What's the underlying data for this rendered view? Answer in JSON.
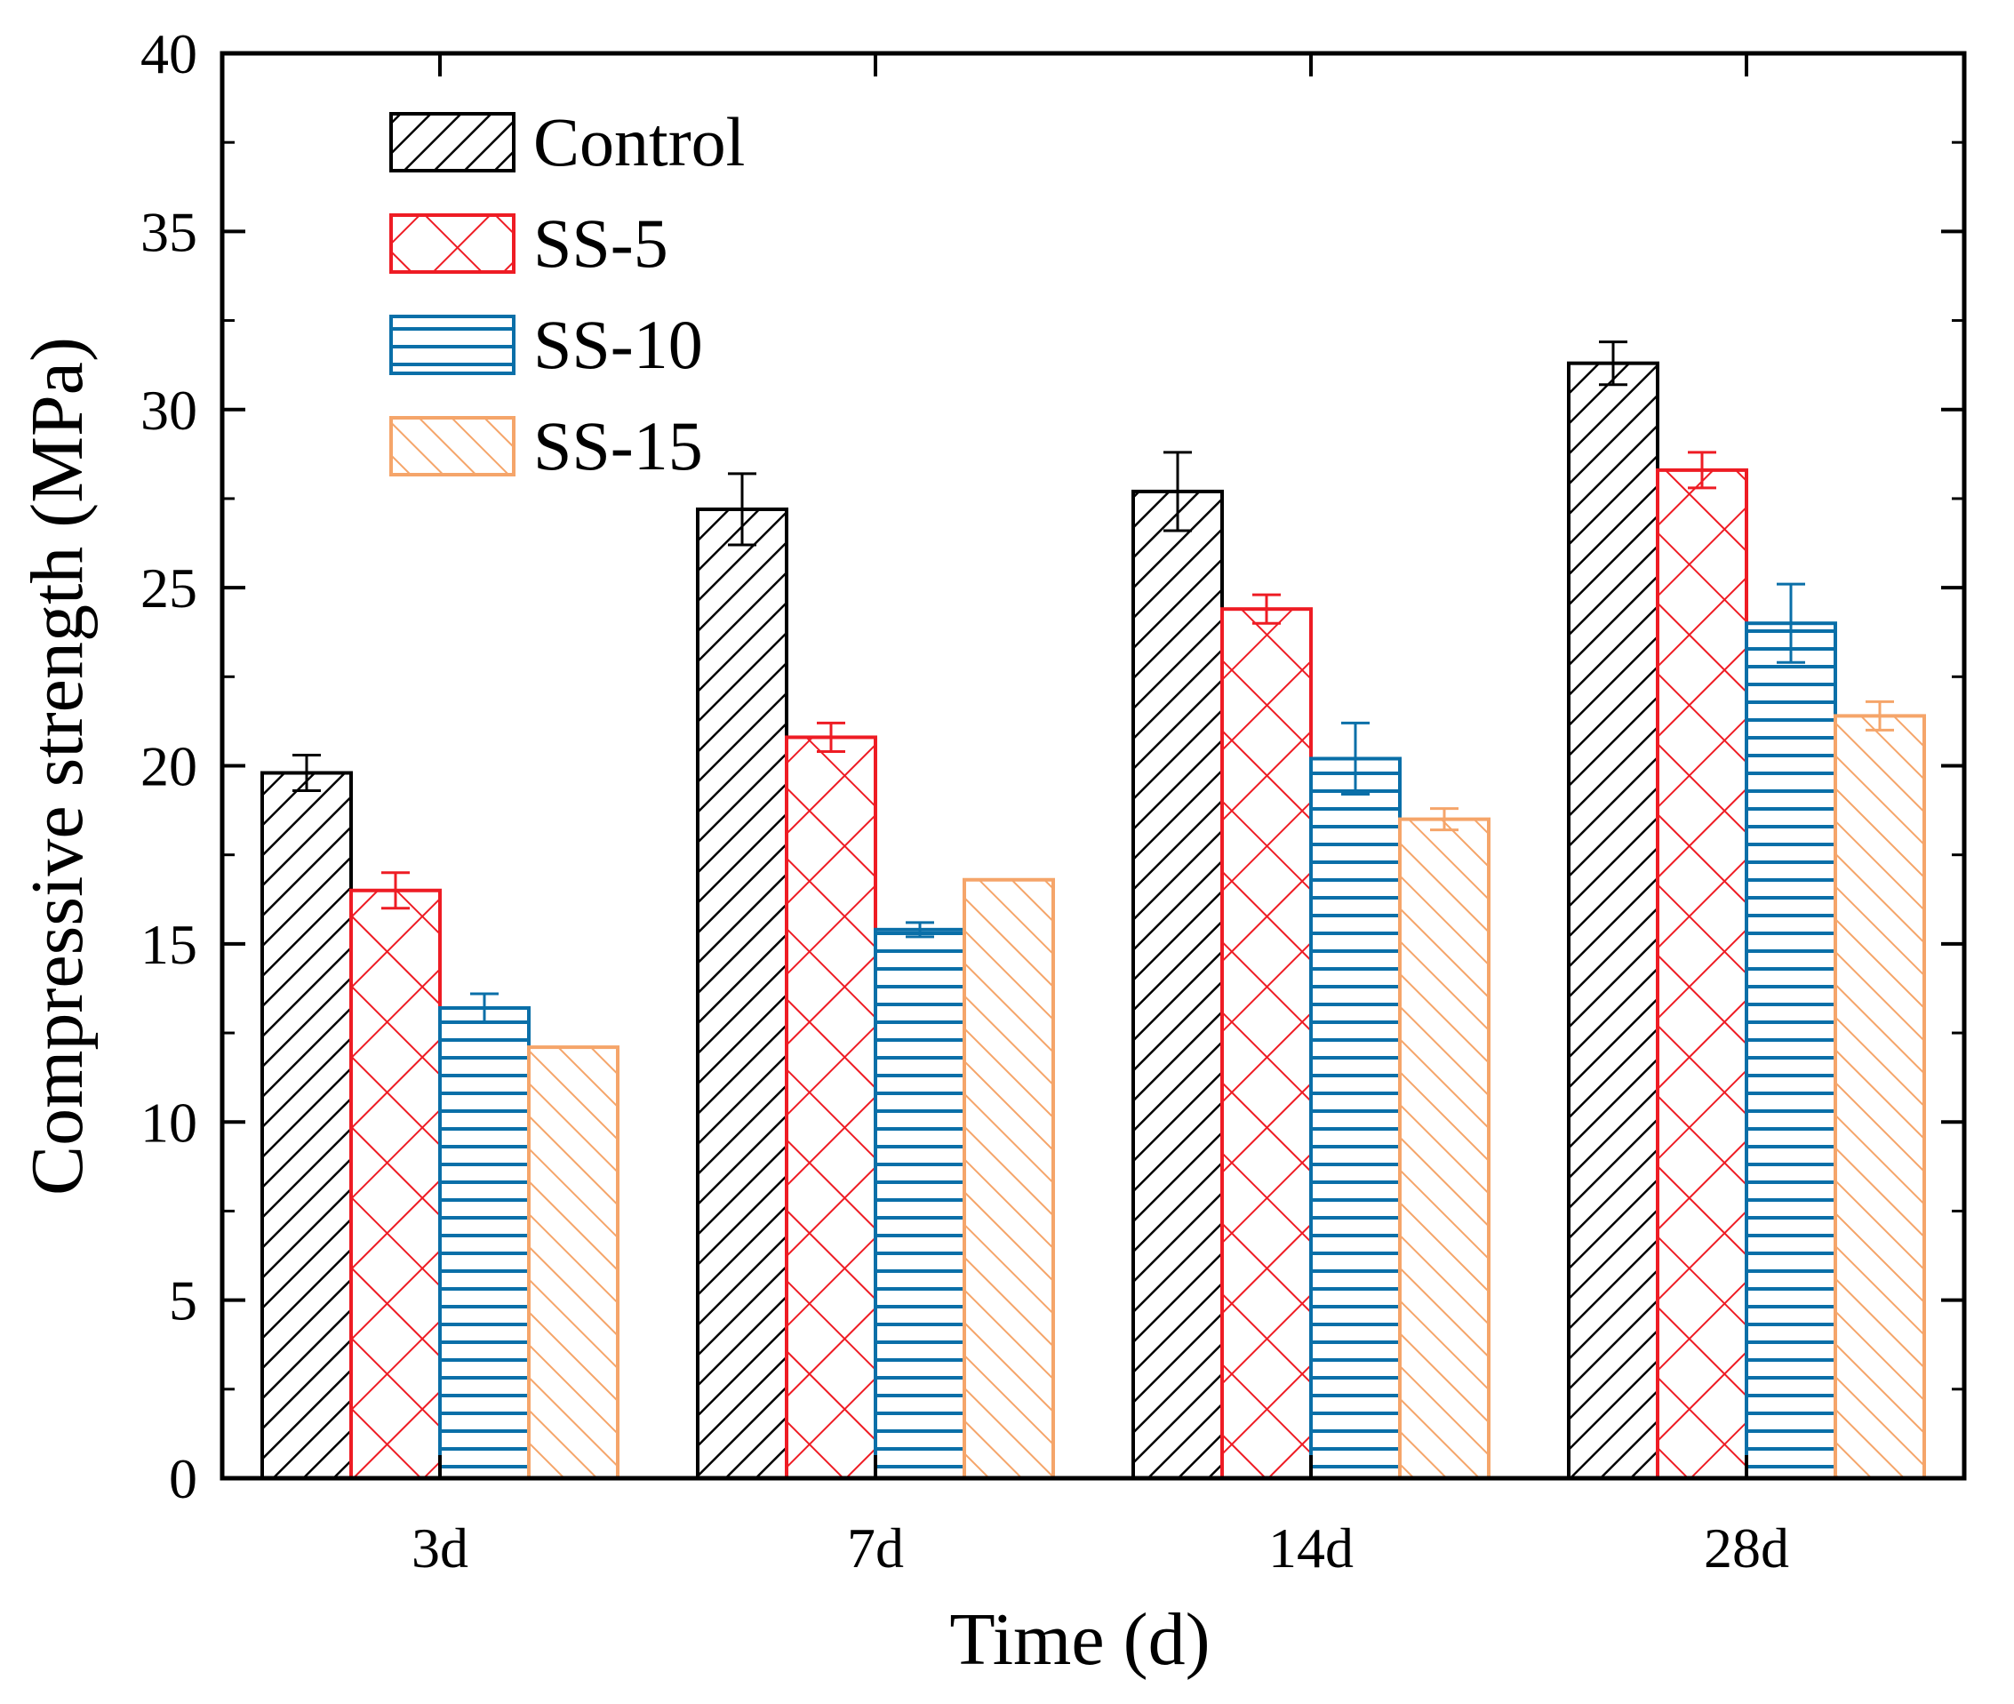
{
  "chart_data": {
    "type": "bar",
    "title": "",
    "xlabel": "Time (d)",
    "ylabel": "Compressive strength (MPa)",
    "ylim": [
      0,
      40
    ],
    "yticks": [
      0,
      5,
      10,
      15,
      20,
      25,
      30,
      35,
      40
    ],
    "categories": [
      "3d",
      "7d",
      "14d",
      "28d"
    ],
    "legend_position": "top-left",
    "series": [
      {
        "name": "Control",
        "color": "#000000",
        "pattern": "diagonal-hatch",
        "values": [
          19.8,
          27.2,
          27.7,
          31.3
        ],
        "errors": [
          0.5,
          1.0,
          1.1,
          0.6
        ]
      },
      {
        "name": "SS-5",
        "color": "#ee1c24",
        "pattern": "cross-hatch",
        "values": [
          16.5,
          20.8,
          24.4,
          28.3
        ],
        "errors": [
          0.5,
          0.4,
          0.4,
          0.5
        ]
      },
      {
        "name": "SS-10",
        "color": "#0a6fa8",
        "pattern": "horizontal-lines",
        "values": [
          13.2,
          15.4,
          20.2,
          24.0
        ],
        "errors": [
          0.4,
          0.2,
          1.0,
          1.1
        ]
      },
      {
        "name": "SS-15",
        "color": "#f5a56a",
        "pattern": "back-diagonal-hatch",
        "values": [
          12.1,
          16.8,
          18.5,
          21.4
        ],
        "errors": [
          0,
          0,
          0.3,
          0.4
        ]
      }
    ]
  }
}
